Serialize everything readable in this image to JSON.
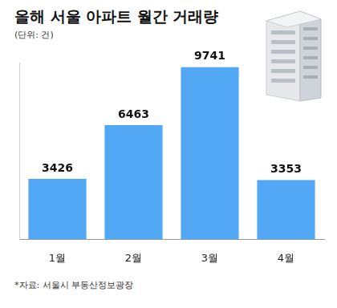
{
  "chart_data": {
    "type": "bar",
    "title": "올해 서울 아파트 월간 거래량",
    "subtitle": "(단위: 건)",
    "source": "*자료: 서울시 부동산정보광장",
    "categories": [
      "1월",
      "2월",
      "3월",
      "4월"
    ],
    "values": [
      3426,
      6463,
      9741,
      3353
    ],
    "color": "#52a8f5",
    "ylim": [
      0,
      10000
    ],
    "data_labels": true,
    "tick_labels": "x",
    "grid": false
  }
}
